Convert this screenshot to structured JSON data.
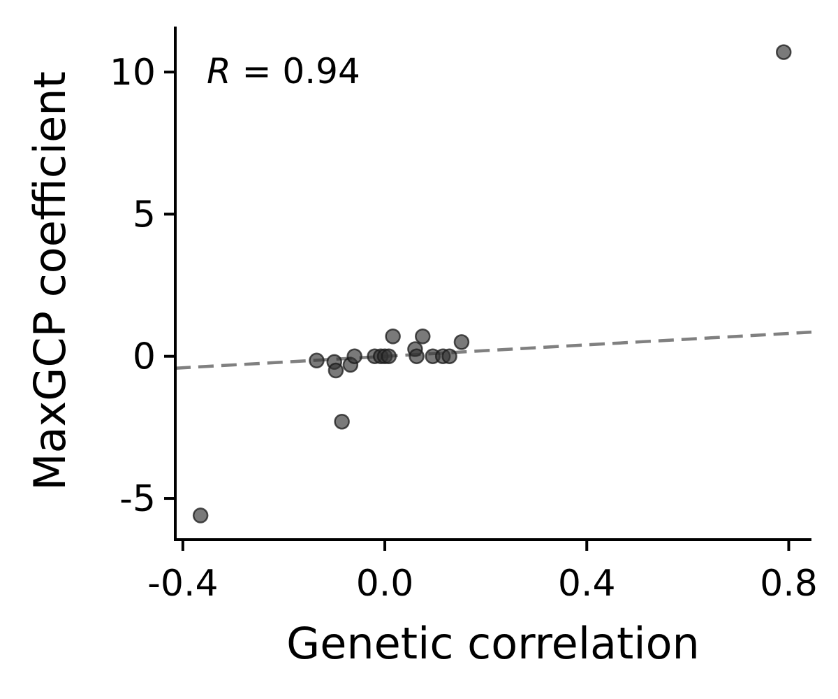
{
  "chart_data": {
    "type": "scatter",
    "title": "",
    "xlabel": "Genetic correlation",
    "ylabel": "MaxGCP coefficient",
    "xlim": [
      -0.415,
      0.845
    ],
    "ylim": [
      -6.45,
      11.6
    ],
    "x_ticks": [
      -0.4,
      0.0,
      0.4,
      0.8
    ],
    "x_tick_labels": [
      "-0.4",
      "0.0",
      "0.4",
      "0.8"
    ],
    "y_ticks": [
      -5,
      0,
      5,
      10
    ],
    "y_tick_labels": [
      "-5",
      "0",
      "5",
      "10"
    ],
    "grid": false,
    "annotation": {
      "var": "R",
      "text": " = 0.94",
      "position": "top-left"
    },
    "trendline": {
      "style": "dashed",
      "x": [
        -0.415,
        0.845
      ],
      "y": [
        -0.42,
        0.85
      ],
      "color": "#808080"
    },
    "series": [
      {
        "color": "#333333",
        "opacity": 0.65,
        "points": [
          {
            "x": 0.79,
            "y": 10.7
          },
          {
            "x": -0.365,
            "y": -5.6
          },
          {
            "x": -0.085,
            "y": -2.3
          },
          {
            "x": -0.135,
            "y": -0.15
          },
          {
            "x": -0.1,
            "y": -0.2
          },
          {
            "x": -0.097,
            "y": -0.5
          },
          {
            "x": -0.068,
            "y": -0.3
          },
          {
            "x": -0.06,
            "y": 0.0
          },
          {
            "x": -0.02,
            "y": 0.0
          },
          {
            "x": -0.008,
            "y": 0.0
          },
          {
            "x": 0.0,
            "y": 0.0
          },
          {
            "x": 0.008,
            "y": 0.0
          },
          {
            "x": 0.016,
            "y": 0.7
          },
          {
            "x": 0.06,
            "y": 0.25
          },
          {
            "x": 0.063,
            "y": 0.0
          },
          {
            "x": 0.075,
            "y": 0.7
          },
          {
            "x": 0.095,
            "y": 0.0
          },
          {
            "x": 0.115,
            "y": 0.0
          },
          {
            "x": 0.128,
            "y": 0.0
          },
          {
            "x": 0.152,
            "y": 0.5
          }
        ]
      }
    ]
  }
}
